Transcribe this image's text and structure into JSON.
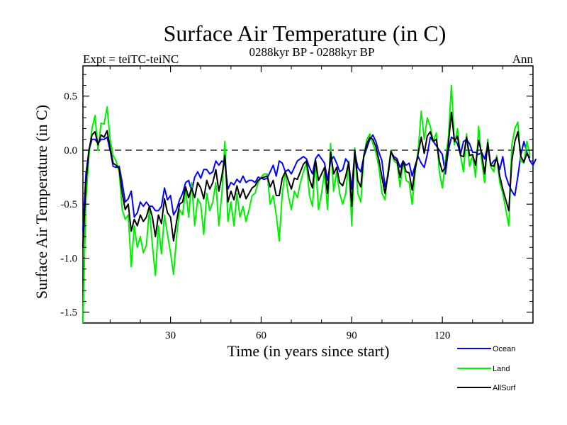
{
  "chart_data": {
    "type": "line",
    "title": "Surface Air Temperature (in C)",
    "subtitle_left": "Expt = teiTC-teiNC",
    "subtitle_center": "0288kyr BP - 0288kyr BP",
    "subtitle_right": "Ann",
    "xlabel": "Time (in years since start)",
    "ylabel": "Surface Air Temperature (in C)",
    "xlim": [
      1,
      150
    ],
    "ylim": [
      -1.6,
      0.78
    ],
    "xticks": [
      30,
      60,
      90,
      120
    ],
    "xtick_labels": [
      "30",
      "60",
      "90",
      "120"
    ],
    "yticks": [
      -1.5,
      -1.0,
      -0.5,
      0.0,
      0.5
    ],
    "ytick_labels": [
      "-1.5",
      "-1.0",
      "-0.5",
      "0.0",
      "0.5"
    ],
    "zero_line": true,
    "legend_position": "bottom-right",
    "series": [
      {
        "name": "Ocean",
        "color": "#0000ff",
        "values": [
          -0.75,
          -0.22,
          0.0,
          0.1,
          0.1,
          0.06,
          0.1,
          0.1,
          0.12,
          0.0,
          -0.15,
          -0.16,
          -0.15,
          -0.3,
          -0.48,
          -0.45,
          -0.38,
          -0.62,
          -0.58,
          -0.48,
          -0.52,
          -0.48,
          -0.52,
          -0.52,
          -0.56,
          -0.56,
          -0.52,
          -0.35,
          -0.46,
          -0.42,
          -0.6,
          -0.55,
          -0.46,
          -0.4,
          -0.3,
          -0.28,
          -0.38,
          -0.25,
          -0.2,
          -0.26,
          -0.18,
          -0.18,
          -0.22,
          -0.2,
          -0.1,
          -0.14,
          -0.1,
          -0.12,
          -0.36,
          -0.3,
          -0.32,
          -0.27,
          -0.3,
          -0.24,
          -0.3,
          -0.28,
          -0.28,
          -0.3,
          -0.25,
          -0.26,
          -0.27,
          -0.26,
          -0.2,
          -0.14,
          -0.24,
          -0.1,
          -0.12,
          -0.2,
          -0.18,
          -0.22,
          -0.16,
          -0.1,
          -0.08,
          -0.06,
          -0.08,
          -0.16,
          -0.22,
          -0.08,
          -0.04,
          -0.08,
          -0.12,
          -0.28,
          -0.1,
          -0.06,
          -0.12,
          -0.2,
          -0.18,
          -0.08,
          -0.12,
          -0.36,
          -0.02,
          -0.16,
          -0.2,
          -0.06,
          0.02,
          0.1,
          0.14,
          0.08,
          -0.02,
          -0.1,
          -0.34,
          -0.24,
          -0.02,
          -0.06,
          -0.08,
          -0.16,
          -0.1,
          -0.14,
          -0.12,
          -0.24,
          -0.14,
          -0.06,
          -0.12,
          -0.16,
          -0.04,
          0.12,
          0.08,
          0.04,
          0.0,
          -0.04,
          -0.22,
          0.0,
          0.12,
          0.1,
          0.06,
          -0.04,
          0.08,
          0.1,
          0.06,
          -0.02,
          -0.02,
          -0.04,
          -0.02,
          -0.08,
          0.04,
          -0.14,
          -0.1,
          -0.08,
          -0.18,
          -0.06,
          -0.24,
          -0.32,
          -0.38,
          -0.42,
          -0.24,
          -0.04,
          0.08,
          -0.02,
          -0.1,
          -0.14,
          -0.08
        ],
        "values_note": "approximate"
      },
      {
        "name": "Land",
        "color": "#00ee00",
        "values": [
          -1.6,
          -0.45,
          -0.05,
          0.2,
          0.32,
          0.0,
          0.25,
          0.24,
          0.4,
          0.1,
          -0.05,
          -0.1,
          -0.2,
          -0.55,
          -0.64,
          -0.6,
          -1.08,
          -0.7,
          -0.9,
          -0.8,
          -0.95,
          -0.88,
          -0.55,
          -0.88,
          -1.16,
          -0.7,
          -0.96,
          -0.6,
          -0.78,
          -0.95,
          -1.15,
          -0.8,
          -0.55,
          -0.6,
          -0.35,
          -0.62,
          -0.3,
          -0.7,
          -0.45,
          -0.5,
          -0.78,
          -0.4,
          -0.56,
          -0.48,
          -0.3,
          -0.7,
          -0.4,
          0.08,
          -0.66,
          -0.48,
          -0.7,
          -0.4,
          -0.62,
          -0.52,
          -0.66,
          -0.55,
          -0.42,
          -0.4,
          -0.3,
          -0.25,
          -0.22,
          -0.22,
          -0.5,
          -0.42,
          -0.6,
          -0.84,
          -0.4,
          -0.2,
          -0.42,
          -0.55,
          -0.38,
          -0.44,
          -0.3,
          -0.2,
          -0.12,
          -0.42,
          -0.52,
          -0.1,
          -0.55,
          -0.4,
          -0.2,
          -0.55,
          0.06,
          -0.38,
          -0.2,
          -0.4,
          -0.5,
          -0.4,
          -0.1,
          -0.7,
          0.02,
          -0.4,
          -0.48,
          -0.05,
          0.1,
          0.15,
          0.06,
          -0.02,
          -0.16,
          -0.4,
          -0.46,
          -0.2,
          0.0,
          -0.1,
          -0.12,
          -0.34,
          -0.1,
          -0.28,
          -0.3,
          -0.5,
          -0.2,
          0.0,
          0.36,
          0.1,
          0.3,
          0.22,
          0.08,
          0.16,
          -0.2,
          -0.35,
          -0.1,
          0.12,
          0.6,
          0.05,
          0.2,
          -0.05,
          -0.2,
          0.15,
          -0.15,
          -0.05,
          -0.25,
          0.22,
          -0.1,
          -0.3,
          0.1,
          -0.15,
          -0.2,
          -0.05,
          -0.3,
          -0.4,
          -0.55,
          -0.7,
          0.05,
          0.2,
          0.26,
          -0.1,
          -0.12,
          0.08,
          -0.05
        ],
        "values_note": "approximate"
      },
      {
        "name": "AllSurf",
        "color": "#000000",
        "values": [
          -0.9,
          -0.3,
          0.0,
          0.14,
          0.17,
          0.05,
          0.14,
          0.12,
          0.18,
          0.02,
          -0.12,
          -0.14,
          -0.17,
          -0.4,
          -0.55,
          -0.5,
          -0.75,
          -0.64,
          -0.7,
          -0.6,
          -0.66,
          -0.62,
          -0.52,
          -0.62,
          -0.8,
          -0.6,
          -0.68,
          -0.45,
          -0.58,
          -0.62,
          -0.84,
          -0.66,
          -0.5,
          -0.48,
          -0.34,
          -0.44,
          -0.35,
          -0.44,
          -0.3,
          -0.35,
          -0.45,
          -0.28,
          -0.36,
          -0.3,
          -0.18,
          -0.38,
          -0.24,
          -0.05,
          -0.48,
          -0.38,
          -0.46,
          -0.33,
          -0.44,
          -0.36,
          -0.45,
          -0.4,
          -0.35,
          -0.33,
          -0.28,
          -0.26,
          -0.25,
          -0.24,
          -0.34,
          -0.28,
          -0.42,
          -0.42,
          -0.26,
          -0.2,
          -0.28,
          -0.36,
          -0.26,
          -0.27,
          -0.2,
          -0.13,
          -0.1,
          -0.27,
          -0.35,
          -0.09,
          -0.28,
          -0.22,
          -0.16,
          -0.4,
          -0.02,
          -0.22,
          -0.16,
          -0.3,
          -0.33,
          -0.24,
          -0.11,
          -0.52,
          0.0,
          -0.28,
          -0.34,
          -0.05,
          0.06,
          0.12,
          0.1,
          0.03,
          -0.09,
          -0.25,
          -0.4,
          -0.22,
          -0.01,
          -0.08,
          -0.1,
          -0.25,
          -0.1,
          -0.2,
          -0.21,
          -0.37,
          -0.17,
          -0.03,
          0.12,
          -0.03,
          0.13,
          0.17,
          0.08,
          0.1,
          -0.1,
          -0.2,
          -0.16,
          0.06,
          0.35,
          0.08,
          0.13,
          -0.05,
          -0.06,
          0.12,
          -0.05,
          -0.04,
          -0.14,
          0.09,
          -0.03,
          -0.22,
          0.07,
          -0.14,
          -0.15,
          -0.07,
          -0.24,
          -0.36,
          -0.46,
          -0.56,
          -0.1,
          0.08,
          0.17,
          -0.06,
          -0.11,
          -0.03,
          -0.07
        ],
        "values_note": "approximate"
      }
    ]
  },
  "colors": {
    "axes": "#000000",
    "background": "#ffffff",
    "zero_line": "#000000"
  }
}
